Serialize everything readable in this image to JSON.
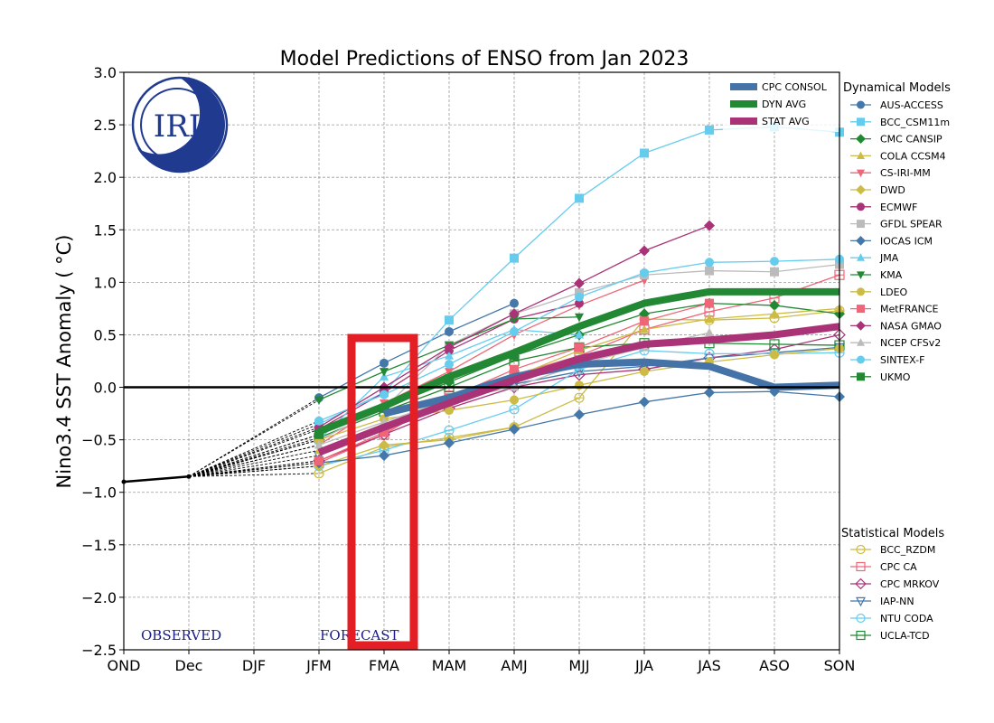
{
  "chart_data": {
    "type": "line",
    "title": "Model Predictions of ENSO from Jan 2023",
    "xlabel": "",
    "ylabel": "Nino3.4 SST Anomaly ( °C)",
    "ylim": [
      -2.5,
      3.0
    ],
    "yticks": [
      "3.0",
      "2.5",
      "2.0",
      "1.5",
      "1.0",
      "0.5",
      "0.0",
      "−0.5",
      "−1.0",
      "−1.5",
      "−2.0",
      "−2.5"
    ],
    "ytick_values": [
      3.0,
      2.5,
      2.0,
      1.5,
      1.0,
      0.5,
      0.0,
      -0.5,
      -1.0,
      -1.5,
      -2.0,
      -2.5
    ],
    "categories": [
      "OND",
      "Dec",
      "DJF",
      "JFM",
      "FMA",
      "MAM",
      "AMJ",
      "MJJ",
      "JJA",
      "JAS",
      "ASO",
      "SON"
    ],
    "grid": true,
    "zero_line": true,
    "annotations": {
      "observed_label": "OBSERVED",
      "forecast_label": "FORECAST",
      "logo_text": "IRI",
      "highlight_box": {
        "category": "FMA",
        "y_range": [
          -2.5,
          0.5
        ],
        "color": "#e31e25"
      }
    },
    "observed": {
      "name": "Observed",
      "color": "#000000",
      "x": [
        "OND",
        "Dec"
      ],
      "values": [
        -0.9,
        -0.85
      ]
    },
    "averages": [
      {
        "name": "CPC CONSOL",
        "color": "#4572a7",
        "start": 4,
        "values": [
          -0.25,
          -0.1,
          0.1,
          0.22,
          0.24,
          0.2,
          0.0,
          0.02
        ]
      },
      {
        "name": "DYN AVG",
        "color": "#228833",
        "start": 3,
        "values": [
          -0.42,
          -0.18,
          0.1,
          0.33,
          0.58,
          0.8,
          0.91,
          0.91,
          0.91
        ]
      },
      {
        "name": "STAT AVG",
        "color": "#aa3377",
        "start": 3,
        "values": [
          -0.62,
          -0.38,
          -0.15,
          0.07,
          0.27,
          0.41,
          0.45,
          0.5,
          0.58
        ]
      }
    ],
    "legend_dynamical_title": "Dynamical Models",
    "legend_statistical_title": "Statistical Models",
    "series_dynamical": [
      {
        "name": "AUS-ACCESS",
        "color": "#4477aa",
        "marker": "circle",
        "values": [
          -0.1,
          0.23,
          0.53,
          0.8,
          null,
          null,
          null,
          null,
          null
        ]
      },
      {
        "name": "BCC_CSM11m",
        "color": "#66ccee",
        "marker": "square",
        "values": [
          -0.35,
          -0.05,
          0.64,
          1.23,
          1.8,
          2.23,
          2.45,
          2.48,
          2.43
        ]
      },
      {
        "name": "CMC CANSIP",
        "color": "#228833",
        "marker": "diamond",
        "values": [
          -0.45,
          -0.2,
          0.05,
          0.3,
          0.5,
          0.7,
          0.8,
          0.78,
          0.7
        ]
      },
      {
        "name": "COLA CCSM4",
        "color": "#ccbb44",
        "marker": "triangle-up",
        "values": [
          -0.6,
          -0.35,
          -0.15,
          0.1,
          0.35,
          0.55,
          0.65,
          0.7,
          0.75
        ]
      },
      {
        "name": "CS-IRI-MM",
        "color": "#ee6677",
        "marker": "triangle-down",
        "values": [
          -0.55,
          -0.15,
          0.15,
          0.5,
          0.78,
          1.02,
          null,
          null,
          null
        ]
      },
      {
        "name": "DWD",
        "color": "#ccbb44",
        "marker": "diamond",
        "values": [
          -0.75,
          -0.55,
          -0.5,
          -0.38,
          null,
          null,
          null,
          null,
          null
        ]
      },
      {
        "name": "ECMWF",
        "color": "#aa3377",
        "marker": "circle",
        "values": [
          -0.4,
          -0.05,
          0.35,
          0.65,
          0.8,
          null,
          null,
          null,
          null
        ]
      },
      {
        "name": "GFDL SPEAR",
        "color": "#bbbbbb",
        "marker": "square",
        "values": [
          -0.5,
          -0.2,
          0.4,
          0.7,
          0.9,
          1.07,
          1.11,
          1.1,
          1.17
        ]
      },
      {
        "name": "IOCAS ICM",
        "color": "#4477aa",
        "marker": "diamond",
        "values": [
          -0.72,
          -0.65,
          -0.53,
          -0.4,
          -0.26,
          -0.14,
          -0.05,
          -0.04,
          -0.09
        ]
      },
      {
        "name": "JMA",
        "color": "#66ccee",
        "marker": "triangle-up",
        "values": [
          -0.5,
          0.1,
          0.3,
          0.55,
          0.5,
          null,
          null,
          null,
          null
        ]
      },
      {
        "name": "KMA",
        "color": "#228833",
        "marker": "triangle-down",
        "values": [
          -0.12,
          0.15,
          0.4,
          0.65,
          0.67,
          null,
          null,
          null,
          null
        ]
      },
      {
        "name": "LDEO",
        "color": "#ccbb44",
        "marker": "circle",
        "values": [
          -0.5,
          -0.3,
          -0.22,
          -0.12,
          0.02,
          0.15,
          0.24,
          0.31,
          0.37
        ]
      },
      {
        "name": "MetFRANCE",
        "color": "#ee6677",
        "marker": "square",
        "values": [
          -0.7,
          -0.43,
          -0.1,
          0.17,
          0.38,
          0.63,
          0.8,
          null,
          null
        ]
      },
      {
        "name": "NASA GMAO",
        "color": "#aa3377",
        "marker": "diamond",
        "values": [
          -0.38,
          0.0,
          0.38,
          0.7,
          0.99,
          1.3,
          1.54,
          null,
          null
        ]
      },
      {
        "name": "NCEP CFSv2",
        "color": "#bbbbbb",
        "marker": "triangle-up",
        "values": [
          -0.55,
          -0.33,
          -0.12,
          0.0,
          0.22,
          0.38,
          0.52,
          null,
          null
        ]
      },
      {
        "name": "SINTEX-F",
        "color": "#66ccee",
        "marker": "circle",
        "values": [
          -0.32,
          -0.07,
          0.22,
          0.53,
          0.86,
          1.09,
          1.19,
          1.2,
          1.22
        ]
      },
      {
        "name": "UKMO",
        "color": "#228833",
        "marker": "square",
        "values": [
          -0.45,
          -0.2,
          0.08,
          0.3,
          null,
          null,
          null,
          null,
          null
        ]
      }
    ],
    "series_statistical": [
      {
        "name": "BCC_RZDM",
        "color": "#ccbb44",
        "marker": "circle-open",
        "values": [
          -0.82,
          -0.57,
          -0.48,
          -0.38,
          -0.1,
          0.65,
          0.64,
          0.66,
          0.73
        ]
      },
      {
        "name": "CPC CA",
        "color": "#ee6677",
        "marker": "square-open",
        "values": [
          -0.72,
          -0.45,
          -0.08,
          0.12,
          0.3,
          0.55,
          0.72,
          0.85,
          1.07
        ]
      },
      {
        "name": "CPC MRKOV",
        "color": "#aa3377",
        "marker": "diamond-open",
        "values": [
          -0.7,
          -0.45,
          -0.2,
          0.0,
          0.12,
          0.17,
          0.28,
          0.36,
          0.5
        ]
      },
      {
        "name": "IAP-NN",
        "color": "#4477aa",
        "marker": "triangle-down-open",
        "values": [
          -0.65,
          -0.4,
          -0.15,
          0.03,
          0.15,
          0.2,
          0.28,
          0.33,
          0.38
        ]
      },
      {
        "name": "NTU CODA",
        "color": "#66ccee",
        "marker": "circle-open",
        "values": [
          -0.75,
          -0.6,
          -0.41,
          -0.21,
          0.17,
          0.35,
          0.32,
          0.32,
          0.33
        ]
      },
      {
        "name": "UCLA-TCD",
        "color": "#228833",
        "marker": "square-open",
        "values": [
          -0.48,
          -0.23,
          0.0,
          0.25,
          0.38,
          0.42,
          0.42,
          0.41,
          0.4
        ]
      }
    ]
  }
}
